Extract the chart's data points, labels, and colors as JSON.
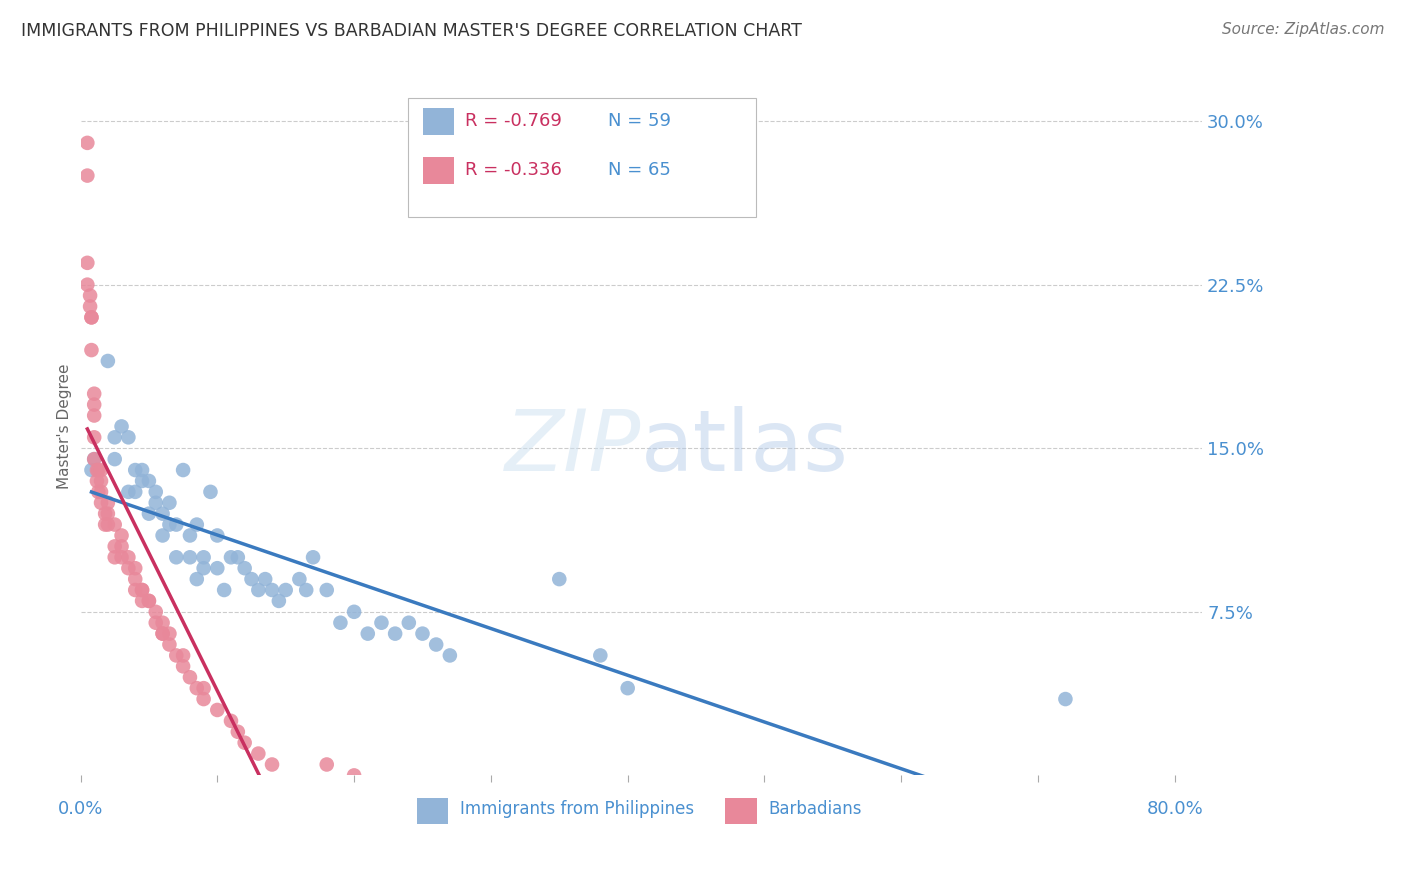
{
  "title": "IMMIGRANTS FROM PHILIPPINES VS BARBADIAN MASTER'S DEGREE CORRELATION CHART",
  "source": "Source: ZipAtlas.com",
  "ylabel": "Master's Degree",
  "y_tick_labels": [
    "7.5%",
    "15.0%",
    "22.5%",
    "30.0%"
  ],
  "y_tick_values": [
    0.075,
    0.15,
    0.225,
    0.3
  ],
  "x_tick_values": [
    0.0,
    0.1,
    0.2,
    0.3,
    0.4,
    0.5,
    0.6,
    0.7,
    0.8
  ],
  "xlim": [
    0.0,
    0.82
  ],
  "ylim": [
    0.0,
    0.32
  ],
  "legend_blue_r": "-0.769",
  "legend_blue_n": "59",
  "legend_pink_r": "-0.336",
  "legend_pink_n": "65",
  "blue_color": "#92b4d8",
  "pink_color": "#e8889a",
  "blue_line_color": "#3a7abf",
  "pink_line_color": "#c93060",
  "background_color": "#ffffff",
  "grid_color": "#cccccc",
  "label_color": "#4a90d0",
  "title_color": "#333333",
  "blue_x": [
    0.008,
    0.01,
    0.02,
    0.025,
    0.025,
    0.03,
    0.035,
    0.035,
    0.04,
    0.04,
    0.045,
    0.045,
    0.05,
    0.05,
    0.055,
    0.055,
    0.06,
    0.06,
    0.065,
    0.065,
    0.07,
    0.07,
    0.075,
    0.08,
    0.08,
    0.085,
    0.085,
    0.09,
    0.09,
    0.095,
    0.1,
    0.1,
    0.105,
    0.11,
    0.115,
    0.12,
    0.125,
    0.13,
    0.135,
    0.14,
    0.145,
    0.15,
    0.16,
    0.165,
    0.17,
    0.18,
    0.19,
    0.2,
    0.21,
    0.22,
    0.23,
    0.24,
    0.25,
    0.26,
    0.27,
    0.35,
    0.38,
    0.4,
    0.72
  ],
  "blue_y": [
    0.14,
    0.145,
    0.19,
    0.145,
    0.155,
    0.16,
    0.13,
    0.155,
    0.13,
    0.14,
    0.135,
    0.14,
    0.12,
    0.135,
    0.125,
    0.13,
    0.11,
    0.12,
    0.115,
    0.125,
    0.1,
    0.115,
    0.14,
    0.1,
    0.11,
    0.09,
    0.115,
    0.095,
    0.1,
    0.13,
    0.095,
    0.11,
    0.085,
    0.1,
    0.1,
    0.095,
    0.09,
    0.085,
    0.09,
    0.085,
    0.08,
    0.085,
    0.09,
    0.085,
    0.1,
    0.085,
    0.07,
    0.075,
    0.065,
    0.07,
    0.065,
    0.07,
    0.065,
    0.06,
    0.055,
    0.09,
    0.055,
    0.04,
    0.035
  ],
  "pink_x": [
    0.005,
    0.005,
    0.005,
    0.005,
    0.007,
    0.007,
    0.008,
    0.008,
    0.008,
    0.01,
    0.01,
    0.01,
    0.01,
    0.01,
    0.012,
    0.012,
    0.013,
    0.013,
    0.015,
    0.015,
    0.015,
    0.015,
    0.018,
    0.018,
    0.02,
    0.02,
    0.02,
    0.025,
    0.025,
    0.025,
    0.03,
    0.03,
    0.03,
    0.035,
    0.035,
    0.04,
    0.04,
    0.04,
    0.045,
    0.045,
    0.045,
    0.05,
    0.05,
    0.055,
    0.055,
    0.06,
    0.06,
    0.06,
    0.065,
    0.065,
    0.07,
    0.075,
    0.075,
    0.08,
    0.085,
    0.09,
    0.09,
    0.1,
    0.11,
    0.115,
    0.12,
    0.13,
    0.14,
    0.18,
    0.2
  ],
  "pink_y": [
    0.29,
    0.275,
    0.235,
    0.225,
    0.215,
    0.22,
    0.21,
    0.195,
    0.21,
    0.17,
    0.175,
    0.165,
    0.145,
    0.155,
    0.135,
    0.14,
    0.13,
    0.14,
    0.14,
    0.13,
    0.135,
    0.125,
    0.12,
    0.115,
    0.12,
    0.115,
    0.125,
    0.105,
    0.115,
    0.1,
    0.1,
    0.11,
    0.105,
    0.095,
    0.1,
    0.09,
    0.095,
    0.085,
    0.08,
    0.085,
    0.085,
    0.08,
    0.08,
    0.075,
    0.07,
    0.065,
    0.07,
    0.065,
    0.06,
    0.065,
    0.055,
    0.05,
    0.055,
    0.045,
    0.04,
    0.035,
    0.04,
    0.03,
    0.025,
    0.02,
    0.015,
    0.01,
    0.005,
    0.005,
    0.0
  ]
}
